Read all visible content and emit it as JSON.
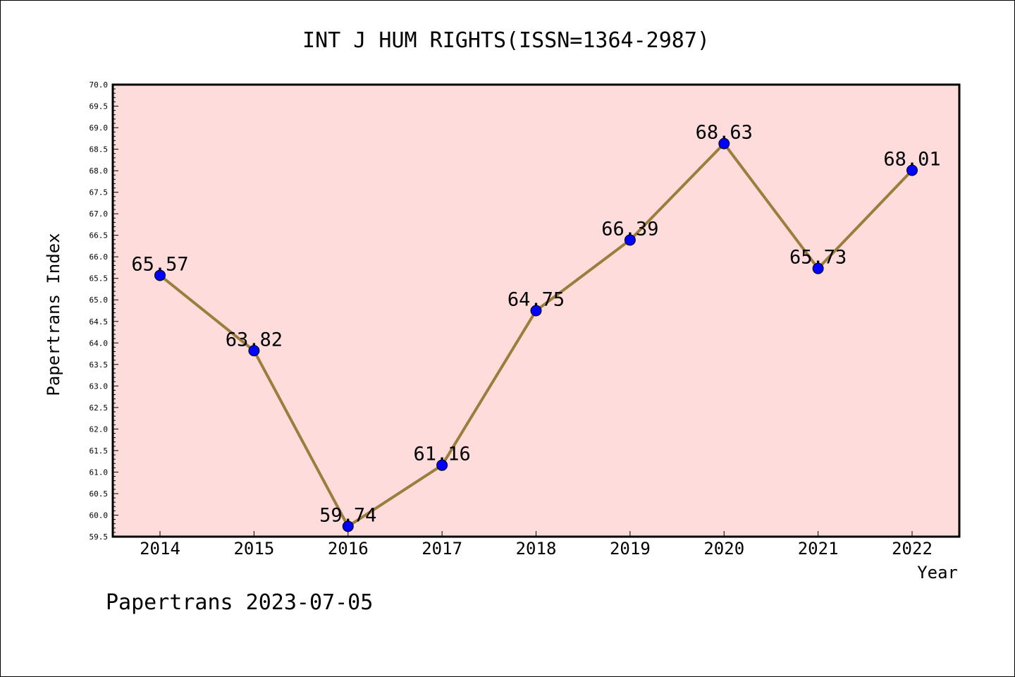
{
  "chart_data": {
    "type": "line",
    "title": "INT J HUM RIGHTS(ISSN=1364-2987)",
    "xlabel": "Year",
    "ylabel": "Papertrans Index",
    "categories": [
      "2014",
      "2015",
      "2016",
      "2017",
      "2018",
      "2019",
      "2020",
      "2021",
      "2022"
    ],
    "values": [
      65.57,
      63.82,
      59.74,
      61.16,
      64.75,
      66.39,
      68.63,
      65.73,
      68.01
    ],
    "data_labels": [
      "65.57",
      "63.82",
      "59.74",
      "61.16",
      "64.75",
      "66.39",
      "68.63",
      "65.73",
      "68.01"
    ],
    "ylim": [
      59.5,
      70.0
    ],
    "yticks": [
      "59.5",
      "60.0",
      "60.5",
      "61.0",
      "61.5",
      "62.0",
      "62.5",
      "63.0",
      "63.5",
      "64.0",
      "64.5",
      "65.0",
      "65.5",
      "66.0",
      "66.5",
      "67.0",
      "67.5",
      "68.0",
      "68.5",
      "69.0",
      "69.5",
      "70.0"
    ],
    "grid": false,
    "colors": {
      "plot_background": "#ffdcdc",
      "line": "#9b7d3c",
      "marker": "#0000ff"
    }
  },
  "footer": "Papertrans 2023-07-05"
}
